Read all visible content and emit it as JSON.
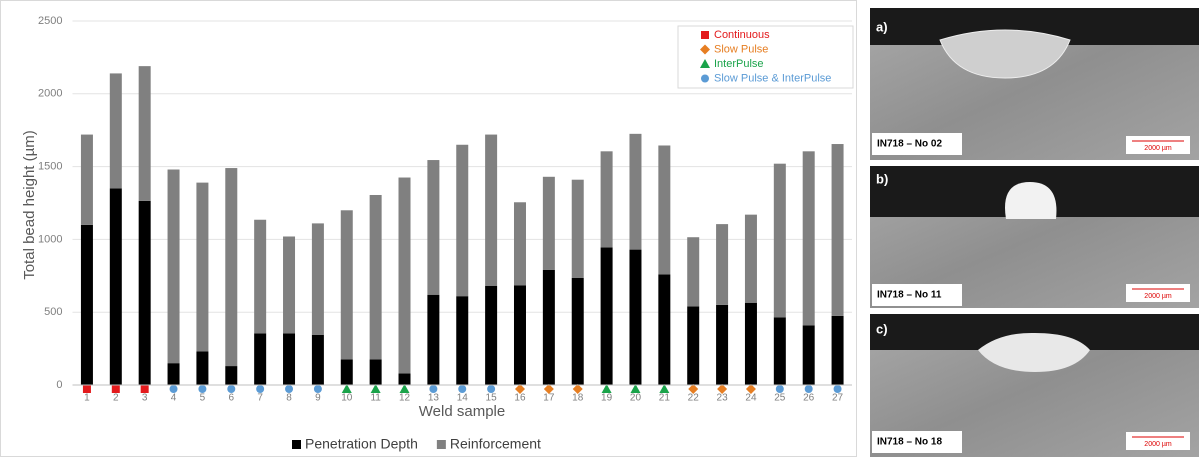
{
  "chart_data": {
    "type": "bar",
    "stacked": true,
    "y_label": "Total bead height (µm)",
    "x_label": "Weld sample",
    "categories": [
      "1",
      "2",
      "3",
      "4",
      "5",
      "6",
      "7",
      "8",
      "9",
      "10",
      "11",
      "12",
      "13",
      "14",
      "15",
      "16",
      "17",
      "18",
      "19",
      "20",
      "21",
      "22",
      "23",
      "24",
      "25",
      "26",
      "27"
    ],
    "series": [
      {
        "name": "Penetration Depth",
        "color": "#000000",
        "values": [
          1100,
          1350,
          1265,
          150,
          230,
          130,
          355,
          355,
          345,
          175,
          175,
          80,
          620,
          610,
          680,
          685,
          790,
          735,
          945,
          930,
          760,
          540,
          550,
          565,
          465,
          410,
          475
        ]
      },
      {
        "name": "Reinforcement",
        "color": "#808080",
        "values": [
          620,
          790,
          925,
          1330,
          1160,
          1360,
          780,
          665,
          765,
          1025,
          1130,
          1345,
          925,
          1040,
          1040,
          570,
          640,
          675,
          660,
          795,
          885,
          475,
          555,
          605,
          1055,
          1195,
          1180
        ]
      }
    ],
    "ylim": [
      0,
      2500
    ],
    "yticks": [
      0,
      500,
      1000,
      1500,
      2000,
      2500
    ],
    "grid": true,
    "legend": "bottom",
    "modes": [
      {
        "name": "Continuous",
        "color": "#e31a1c",
        "marker": "square"
      },
      {
        "name": "Slow Pulse",
        "color": "#e67e22",
        "marker": "diamond"
      },
      {
        "name": "InterPulse",
        "color": "#1aa34a",
        "marker": "triangle"
      },
      {
        "name": "Slow Pulse & InterPulse",
        "color": "#5b9bd5",
        "marker": "circle"
      }
    ],
    "sample_modes": [
      0,
      0,
      0,
      3,
      3,
      3,
      3,
      3,
      3,
      2,
      2,
      2,
      3,
      3,
      3,
      1,
      1,
      1,
      2,
      2,
      2,
      1,
      1,
      1,
      3,
      3,
      3
    ]
  },
  "panels": [
    {
      "letter": "a)",
      "caption": "IN718 – No 02",
      "scale": "2000 µm"
    },
    {
      "letter": "b)",
      "caption": "IN718 – No 11",
      "scale": "2000 µm"
    },
    {
      "letter": "c)",
      "caption": "IN718 – No 18",
      "scale": "2000 µm"
    }
  ]
}
